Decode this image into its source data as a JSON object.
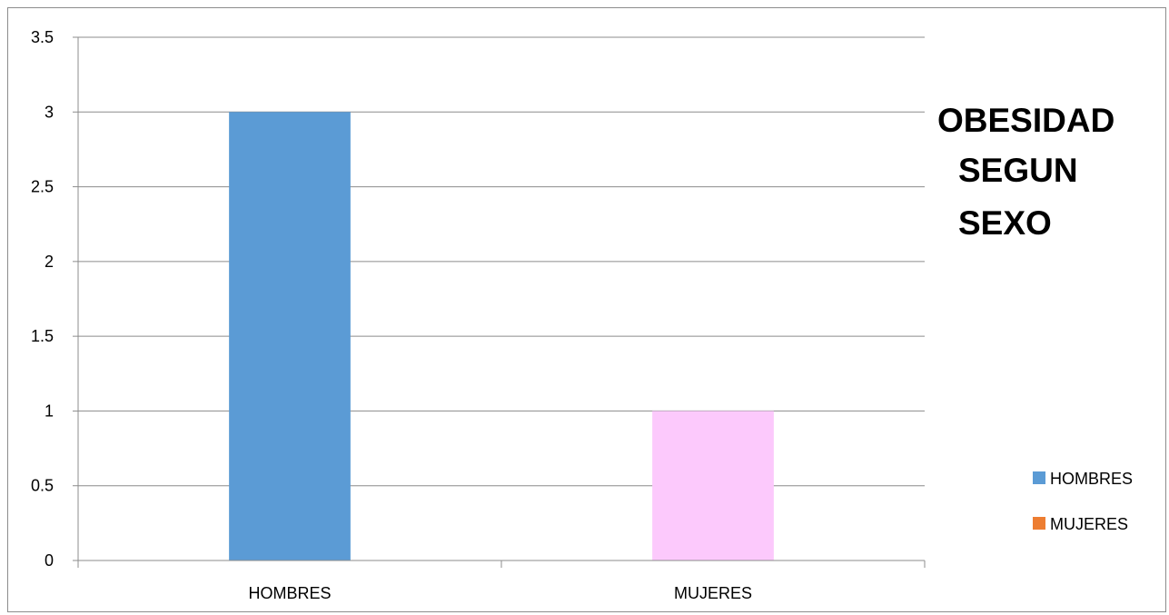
{
  "chart_data": {
    "type": "bar",
    "title_lines": [
      "OBESIDAD",
      "SEGUN",
      "SEXO"
    ],
    "categories": [
      "HOMBRES",
      "MUJERES"
    ],
    "values": [
      3,
      1
    ],
    "bar_colors": [
      "#5b9bd5",
      "#fcc9fc"
    ],
    "ylim": [
      0,
      3.5
    ],
    "yticks": [
      "0",
      "0.5",
      "1",
      "1.5",
      "2",
      "2.5",
      "3",
      "3.5"
    ],
    "grid": true,
    "legend_position": "right",
    "legend": [
      {
        "name": "HOMBRES",
        "color": "#5b9bd5"
      },
      {
        "name": "MUJERES",
        "color": "#ed7d31"
      }
    ]
  }
}
